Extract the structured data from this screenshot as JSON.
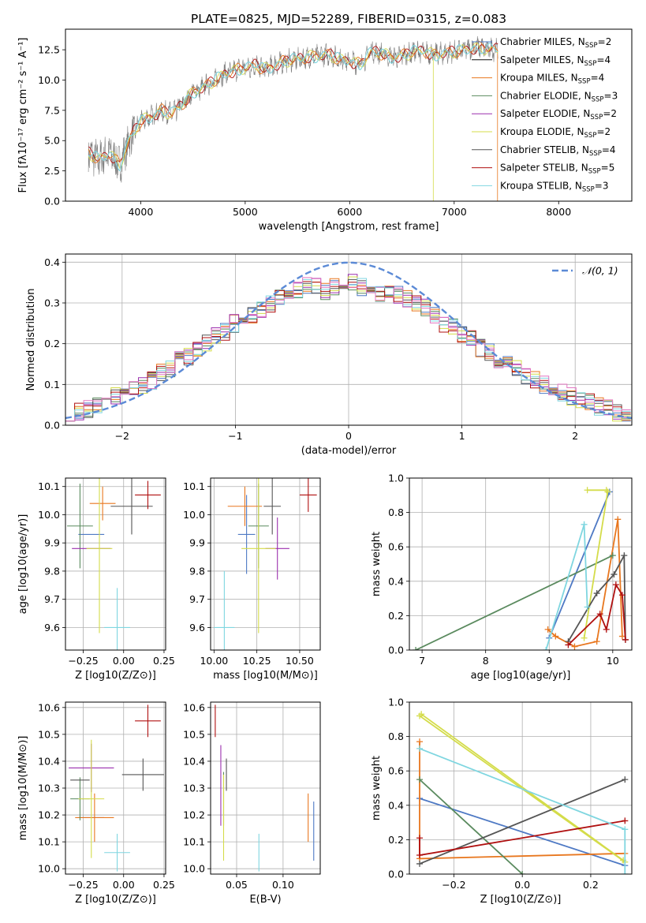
{
  "figure": {
    "title": "PLATE=0825, MJD=52289, FIBERID=0315, z=0.083"
  },
  "colors": {
    "models": [
      "#4e79c4",
      "#111111",
      "#e8771f",
      "#5a8a5e",
      "#9b2fae",
      "#d4dc4a",
      "#555555",
      "#b01010",
      "#7fd6e0"
    ],
    "gaussian": "#5b8ad6",
    "hist_extra": "#e377c2"
  },
  "legend_models": [
    {
      "base": "Chabrier MILES, N",
      "sub": "SSP",
      "tail": "=2"
    },
    {
      "base": "Salpeter MILES, N",
      "sub": "SSP",
      "tail": "=4"
    },
    {
      "base": "Kroupa MILES, N",
      "sub": "SSP",
      "tail": "=4"
    },
    {
      "base": "Chabrier ELODIE, N",
      "sub": "SSP",
      "tail": "=3"
    },
    {
      "base": "Salpeter ELODIE, N",
      "sub": "SSP",
      "tail": "=2"
    },
    {
      "base": "Kroupa ELODIE, N",
      "sub": "SSP",
      "tail": "=2"
    },
    {
      "base": "Chabrier STELIB, N",
      "sub": "SSP",
      "tail": "=4"
    },
    {
      "base": "Salpeter STELIB, N",
      "sub": "SSP",
      "tail": "=5"
    },
    {
      "base": "Kroupa STELIB, N",
      "sub": "SSP",
      "tail": "=3"
    }
  ],
  "chart_data": [
    {
      "id": "spectrum",
      "type": "line",
      "title": "PLATE=0825, MJD=52289, FIBERID=0315, z=0.083",
      "xlabel": "wavelength [Angstrom, rest frame]",
      "ylabel": "Flux [fλ10⁻¹⁷ erg cm⁻² s⁻¹ A⁻¹]",
      "xlim": [
        3280,
        8700
      ],
      "ylim": [
        0,
        14.2
      ],
      "xticks": [
        4000,
        5000,
        6000,
        7000,
        8000
      ],
      "yticks": [
        0.0,
        2.5,
        5.0,
        7.5,
        10.0,
        12.5
      ],
      "xtick_labels": [
        "4000",
        "5000",
        "6000",
        "7000",
        "8000"
      ],
      "ytick_labels": [
        "0.0",
        "2.5",
        "5.0",
        "7.5",
        "10.0",
        "12.5"
      ],
      "grid": false,
      "legend_position": "right",
      "continuum": {
        "x": [
          3500,
          3600,
          3700,
          3800,
          3900,
          4000,
          4100,
          4200,
          4300,
          4400,
          4500,
          4600,
          4700,
          4800,
          4900,
          5000,
          5100,
          5200,
          5300,
          5400,
          5500,
          5600,
          5700,
          5800,
          5900,
          6000,
          6100,
          6200,
          6300,
          6400,
          6500,
          6600,
          6700,
          6800,
          6900,
          7000,
          7100,
          7200,
          7300,
          7420
        ],
        "y": [
          4.0,
          3.4,
          4.0,
          3.0,
          5.2,
          6.6,
          7.0,
          7.5,
          7.2,
          8.0,
          9.0,
          9.4,
          9.9,
          10.5,
          10.8,
          11.0,
          11.2,
          10.9,
          11.3,
          11.6,
          11.7,
          11.9,
          12.0,
          12.1,
          11.7,
          11.6,
          11.3,
          12.3,
          12.2,
          11.9,
          12.0,
          12.3,
          12.4,
          12.1,
          12.2,
          12.3,
          12.5,
          12.7,
          12.6,
          12.5
        ]
      }
    },
    {
      "id": "residuals",
      "type": "histogram",
      "xlabel": "(data-model)/error",
      "ylabel": "Normed distribution",
      "xlim": [
        -2.5,
        2.5
      ],
      "ylim": [
        0,
        0.42
      ],
      "xticks": [
        -2,
        -1,
        0,
        1,
        2
      ],
      "yticks": [
        0.0,
        0.1,
        0.2,
        0.3,
        0.4
      ],
      "xtick_labels": [
        "−2",
        "−1",
        "0",
        "1",
        "2"
      ],
      "ytick_labels": [
        "0.0",
        "0.1",
        "0.2",
        "0.3",
        "0.4"
      ],
      "grid": true,
      "legend_position": "top-right",
      "legend": [
        "𝒩(0, 1)"
      ],
      "bin_width": 0.1,
      "bin_start": -2.5,
      "base": [
        0.03,
        0.035,
        0.04,
        0.05,
        0.06,
        0.07,
        0.08,
        0.09,
        0.1,
        0.11,
        0.13,
        0.14,
        0.16,
        0.17,
        0.19,
        0.2,
        0.22,
        0.23,
        0.25,
        0.26,
        0.27,
        0.28,
        0.3,
        0.31,
        0.32,
        0.33,
        0.34,
        0.34,
        0.33,
        0.34,
        0.35,
        0.35,
        0.34,
        0.33,
        0.32,
        0.33,
        0.32,
        0.31,
        0.3,
        0.29,
        0.27,
        0.25,
        0.24,
        0.22,
        0.21,
        0.19,
        0.18,
        0.16,
        0.15,
        0.14,
        0.12,
        0.11,
        0.1,
        0.09,
        0.08,
        0.07,
        0.06,
        0.055,
        0.045,
        0.04,
        0.03,
        0.025
      ],
      "gaussian": {
        "mu": 0,
        "sigma": 1
      }
    },
    {
      "id": "age-vs-Z",
      "type": "errorbar",
      "xlabel": "Z [log10(Z/Z⊙)]",
      "ylabel": "age  [log10(age/yr)]",
      "xlim": [
        -0.36,
        0.26
      ],
      "ylim": [
        9.52,
        10.13
      ],
      "xticks": [
        -0.25,
        0.0,
        0.25
      ],
      "yticks": [
        9.6,
        9.7,
        9.8,
        9.9,
        10.0,
        10.1
      ],
      "xtick_labels": [
        "−0.25",
        "0.00",
        "0.25"
      ],
      "ytick_labels": [
        "9.6",
        "9.7",
        "9.8",
        "9.9",
        "10.0",
        "10.1"
      ],
      "grid": true,
      "points": [
        {
          "x": -0.2,
          "y": 9.93,
          "xerr": 0.08,
          "yerr": 0.0,
          "c": 0
        },
        {
          "x": -0.13,
          "y": 10.04,
          "xerr": 0.08,
          "yerr": 0.06,
          "c": 2
        },
        {
          "x": -0.27,
          "y": 9.96,
          "xerr": 0.08,
          "yerr": 0.15,
          "c": 3
        },
        {
          "x": -0.2,
          "y": 9.88,
          "xerr": 0.12,
          "yerr": 0.0,
          "c": 4
        },
        {
          "x": -0.15,
          "y": 9.88,
          "xerr": 0.08,
          "yerr": 0.3,
          "c": 5
        },
        {
          "x": 0.05,
          "y": 10.03,
          "xerr": 0.13,
          "yerr": 0.1,
          "c": 6
        },
        {
          "x": 0.15,
          "y": 10.07,
          "xerr": 0.08,
          "yerr": 0.05,
          "c": 7
        },
        {
          "x": -0.04,
          "y": 9.6,
          "xerr": 0.08,
          "yerr": 0.14,
          "c": 8
        },
        {
          "x": -0.05,
          "y": 10.04,
          "xerr": 0.1,
          "yerr": 0.0,
          "c": 9
        }
      ]
    },
    {
      "id": "age-vs-mass",
      "type": "errorbar",
      "xlabel": "mass [log10(M/M⊙)]",
      "ylabel": "",
      "xlim": [
        9.98,
        10.62
      ],
      "ylim": [
        9.52,
        10.13
      ],
      "xticks": [
        10.0,
        10.25,
        10.5
      ],
      "yticks": [
        9.6,
        9.7,
        9.8,
        9.9,
        10.0,
        10.1
      ],
      "xtick_labels": [
        "10.00",
        "10.25",
        "10.50"
      ],
      "ytick_labels": [
        "9.6",
        "9.7",
        "9.8",
        "9.9",
        "10.0",
        "10.1"
      ],
      "grid": true,
      "points": [
        {
          "x": 10.19,
          "y": 9.93,
          "xerr": 0.05,
          "yerr": 0.14,
          "c": 0
        },
        {
          "x": 10.18,
          "y": 10.03,
          "xerr": 0.1,
          "yerr": 0.07,
          "c": 2
        },
        {
          "x": 10.26,
          "y": 9.96,
          "xerr": 0.06,
          "yerr": 0.15,
          "c": 3
        },
        {
          "x": 10.37,
          "y": 9.88,
          "xerr": 0.07,
          "yerr": 0.11,
          "c": 4
        },
        {
          "x": 10.26,
          "y": 9.88,
          "xerr": 0.1,
          "yerr": 0.3,
          "c": 5
        },
        {
          "x": 10.34,
          "y": 10.03,
          "xerr": 0.05,
          "yerr": 0.1,
          "c": 6
        },
        {
          "x": 10.55,
          "y": 10.07,
          "xerr": 0.05,
          "yerr": 0.06,
          "c": 7
        },
        {
          "x": 10.06,
          "y": 9.6,
          "xerr": 0.06,
          "yerr": 0.2,
          "c": 8
        },
        {
          "x": 10.3,
          "y": 10.04,
          "xerr": 0.09,
          "yerr": 0.0,
          "c": 9
        }
      ]
    },
    {
      "id": "weight-vs-age",
      "type": "line",
      "xlabel": "age  [log10(age/yr)]",
      "ylabel": "mass weight",
      "xlim": [
        6.8,
        10.3
      ],
      "ylim": [
        0,
        1.0
      ],
      "xticks": [
        7,
        8,
        9,
        10
      ],
      "yticks": [
        0.0,
        0.2,
        0.4,
        0.6,
        0.8,
        1.0
      ],
      "xtick_labels": [
        "7",
        "8",
        "9",
        "10"
      ],
      "ytick_labels": [
        "0.0",
        "0.2",
        "0.4",
        "0.6",
        "0.8",
        "1.0"
      ],
      "grid": true,
      "series": [
        {
          "x": [
            9.0,
            9.95
          ],
          "y": [
            0.07,
            0.92
          ],
          "c": 0
        },
        {
          "x": [
            8.98,
            9.1,
            9.4,
            9.75,
            10.08,
            10.15
          ],
          "y": [
            0.12,
            0.08,
            0.02,
            0.05,
            0.76,
            0.08
          ],
          "c": 2
        },
        {
          "x": [
            6.9,
            10.0
          ],
          "y": [
            0.0,
            0.55
          ],
          "c": 3
        },
        {
          "x": [
            9.6,
            9.9
          ],
          "y": [
            0.93,
            0.93
          ],
          "c": 5
        },
        {
          "x": [
            9.55,
            9.92
          ],
          "y": [
            0.07,
            0.92
          ],
          "c": 5
        },
        {
          "x": [
            9.3,
            9.75,
            10.02,
            10.18,
            10.2
          ],
          "y": [
            0.05,
            0.33,
            0.44,
            0.55,
            0.06
          ],
          "c": 6
        },
        {
          "x": [
            9.3,
            9.8,
            9.9,
            10.05,
            10.15,
            10.2
          ],
          "y": [
            0.03,
            0.21,
            0.12,
            0.38,
            0.32,
            0.06
          ],
          "c": 7
        },
        {
          "x": [
            8.95,
            9.55
          ],
          "y": [
            0.0,
            0.73
          ],
          "c": 8
        },
        {
          "x": [
            9.55,
            9.6
          ],
          "y": [
            0.73,
            0.25
          ],
          "c": 8
        },
        {
          "x": [
            9.35,
            10.05,
            10.15
          ],
          "y": [
            0.1,
            0.38,
            0.08
          ],
          "c": 9
        }
      ]
    },
    {
      "id": "mass-vs-Z",
      "type": "errorbar",
      "xlabel": "Z [log10(Z/Z⊙)]",
      "ylabel": "mass [log10(M/M⊙)]",
      "xlim": [
        -0.36,
        0.26
      ],
      "ylim": [
        9.98,
        10.62
      ],
      "xticks": [
        -0.25,
        0.0,
        0.25
      ],
      "yticks": [
        10.0,
        10.1,
        10.2,
        10.3,
        10.4,
        10.5,
        10.6
      ],
      "xtick_labels": [
        "−0.25",
        "0.00",
        "0.25"
      ],
      "ytick_labels": [
        "10.0",
        "10.1",
        "10.2",
        "10.3",
        "10.4",
        "10.5",
        "10.6"
      ],
      "grid": true,
      "points": [
        {
          "x": -0.2,
          "y": 10.19,
          "xerr": 0.08,
          "yerr": 0.0,
          "c": 0
        },
        {
          "x": -0.18,
          "y": 10.19,
          "xerr": 0.12,
          "yerr": 0.09,
          "c": 2
        },
        {
          "x": -0.27,
          "y": 10.26,
          "xerr": 0.06,
          "yerr": 0.08,
          "c": 3
        },
        {
          "x": -0.2,
          "y": 10.375,
          "xerr": 0.14,
          "yerr": 0.09,
          "c": 4
        },
        {
          "x": -0.2,
          "y": 10.26,
          "xerr": 0.08,
          "yerr": 0.22,
          "c": 5
        },
        {
          "x": 0.12,
          "y": 10.35,
          "xerr": 0.13,
          "yerr": 0.06,
          "c": 6
        },
        {
          "x": 0.15,
          "y": 10.55,
          "xerr": 0.08,
          "yerr": 0.06,
          "c": 7
        },
        {
          "x": -0.04,
          "y": 10.06,
          "xerr": 0.08,
          "yerr": 0.07,
          "c": 8
        },
        {
          "x": -0.1,
          "y": 10.36,
          "xerr": 0.12,
          "yerr": 0.04,
          "c": 9
        },
        {
          "x": -0.27,
          "y": 10.33,
          "xerr": 0.06,
          "yerr": 0.0,
          "c": 6
        }
      ]
    },
    {
      "id": "mass-vs-EBV",
      "type": "errorbar",
      "xlabel": "E(B-V)",
      "ylabel": "",
      "xlim": [
        0.022,
        0.14
      ],
      "ylim": [
        9.98,
        10.62
      ],
      "xticks": [
        0.05,
        0.1
      ],
      "yticks": [
        10.0,
        10.1,
        10.2,
        10.3,
        10.4,
        10.5,
        10.6
      ],
      "xtick_labels": [
        "0.05",
        "0.10"
      ],
      "ytick_labels": [
        "10.0",
        "10.1",
        "10.2",
        "10.3",
        "10.4",
        "10.5",
        "10.6"
      ],
      "grid": true,
      "points": [
        {
          "x": 0.133,
          "y": 10.14,
          "xerr": 0.0,
          "yerr": 0.11,
          "c": 0
        },
        {
          "x": 0.127,
          "y": 10.19,
          "xerr": 0.0,
          "yerr": 0.09,
          "c": 2
        },
        {
          "x": 0.036,
          "y": 10.26,
          "xerr": 0.0,
          "yerr": 0.1,
          "c": 3
        },
        {
          "x": 0.033,
          "y": 10.31,
          "xerr": 0.0,
          "yerr": 0.15,
          "c": 4
        },
        {
          "x": 0.036,
          "y": 10.19,
          "xerr": 0.0,
          "yerr": 0.16,
          "c": 5
        },
        {
          "x": 0.039,
          "y": 10.35,
          "xerr": 0.0,
          "yerr": 0.06,
          "c": 6
        },
        {
          "x": 0.027,
          "y": 10.55,
          "xerr": 0.0,
          "yerr": 0.06,
          "c": 7
        },
        {
          "x": 0.074,
          "y": 10.06,
          "xerr": 0.0,
          "yerr": 0.07,
          "c": 8
        },
        {
          "x": 0.125,
          "y": 10.28,
          "xerr": 0.0,
          "yerr": 0.12,
          "c": 9
        }
      ]
    },
    {
      "id": "weight-vs-Z",
      "type": "line",
      "xlabel": "Z [log10(Z/Z⊙)]",
      "ylabel": "mass weight",
      "xlim": [
        -0.33,
        0.32
      ],
      "ylim": [
        0,
        1.0
      ],
      "xticks": [
        -0.2,
        0.0,
        0.2
      ],
      "yticks": [
        0.0,
        0.2,
        0.4,
        0.6,
        0.8,
        1.0
      ],
      "xtick_labels": [
        "−0.2",
        "0.0",
        "0.2"
      ],
      "ytick_labels": [
        "0.0",
        "0.2",
        "0.4",
        "0.6",
        "0.8",
        "1.0"
      ],
      "grid": true,
      "series": [
        {
          "x": [
            -0.3,
            0.3
          ],
          "y": [
            0.44,
            0.05
          ],
          "c": 0
        },
        {
          "x": [
            -0.3,
            -0.3,
            0.3
          ],
          "y": [
            0.77,
            0.09,
            0.12
          ],
          "c": 2
        },
        {
          "x": [
            -0.3,
            0.0
          ],
          "y": [
            0.55,
            0.0
          ],
          "c": 3
        },
        {
          "x": [
            -0.3,
            0.3
          ],
          "y": [
            0.92,
            0.07
          ],
          "c": 5
        },
        {
          "x": [
            -0.295,
            0.295
          ],
          "y": [
            0.93,
            0.08
          ],
          "c": 5
        },
        {
          "x": [
            -0.3,
            0.3
          ],
          "y": [
            0.06,
            0.55
          ],
          "c": 6
        },
        {
          "x": [
            -0.3,
            -0.3,
            0.3
          ],
          "y": [
            0.21,
            0.11,
            0.31
          ],
          "c": 7
        },
        {
          "x": [
            -0.3,
            0.3,
            0.3
          ],
          "y": [
            0.73,
            0.26,
            0.0
          ],
          "c": 8
        },
        {
          "x": [
            -0.3,
            0.3
          ],
          "y": [
            0.42,
            0.05
          ],
          "c": 9
        }
      ]
    }
  ]
}
